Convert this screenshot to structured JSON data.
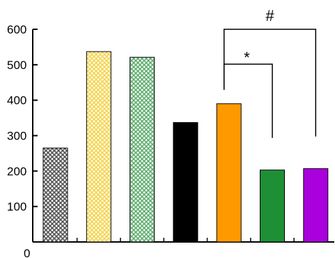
{
  "chart_data": {
    "type": "bar",
    "title": "",
    "xlabel": "",
    "ylabel": "",
    "ylim": [
      0,
      600
    ],
    "yticks": [
      0,
      100,
      200,
      300,
      400,
      500,
      600
    ],
    "grid": false,
    "legend": "none",
    "bars": [
      {
        "value": 265,
        "fill": "pattern",
        "pattern_color": "#555555",
        "edge": "#000000"
      },
      {
        "value": 537,
        "fill": "pattern",
        "pattern_color": "#f2d24a",
        "edge": "#000000"
      },
      {
        "value": 521,
        "fill": "pattern",
        "pattern_color": "#5aa86a",
        "edge": "#000000"
      },
      {
        "value": 337,
        "fill": "solid",
        "color": "#000000",
        "edge": "#000000"
      },
      {
        "value": 390,
        "fill": "solid",
        "color": "#ff9900",
        "edge": "#000000"
      },
      {
        "value": 203,
        "fill": "solid",
        "color": "#1f8f36",
        "edge": "#000000"
      },
      {
        "value": 207,
        "fill": "solid",
        "color": "#aa00dd",
        "edge": "#000000"
      }
    ],
    "annotations": [
      {
        "label": "*",
        "from_bar": 5,
        "to_bar": 6
      },
      {
        "label": "#",
        "from_bar": 5,
        "to_bar": 7
      }
    ]
  }
}
